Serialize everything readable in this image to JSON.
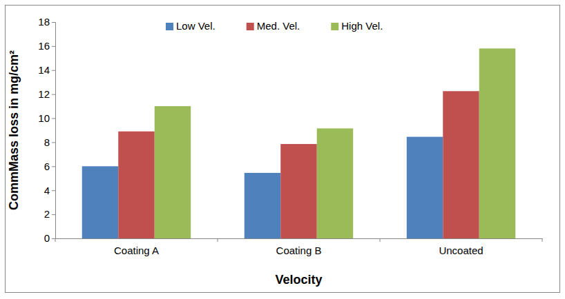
{
  "chart_data": {
    "type": "bar",
    "x_label": "Velocity",
    "y_label": "CommMass loss in mg/cm²",
    "categories": [
      "Coating A",
      "Coating B",
      "Uncoated"
    ],
    "series": [
      {
        "name": "Low Vel.",
        "color": "#4f81bd",
        "values": [
          6.0,
          5.45,
          8.45
        ]
      },
      {
        "name": "Med. Vel.",
        "color": "#c0504d",
        "values": [
          8.9,
          7.85,
          12.25
        ]
      },
      {
        "name": "High Vel.",
        "color": "#9bbb59",
        "values": [
          11.0,
          9.15,
          15.8
        ]
      }
    ],
    "ylim": [
      0,
      18
    ],
    "yticks": [
      0,
      2,
      4,
      6,
      8,
      10,
      12,
      14,
      16,
      18
    ],
    "grid": false,
    "legend": "top"
  }
}
